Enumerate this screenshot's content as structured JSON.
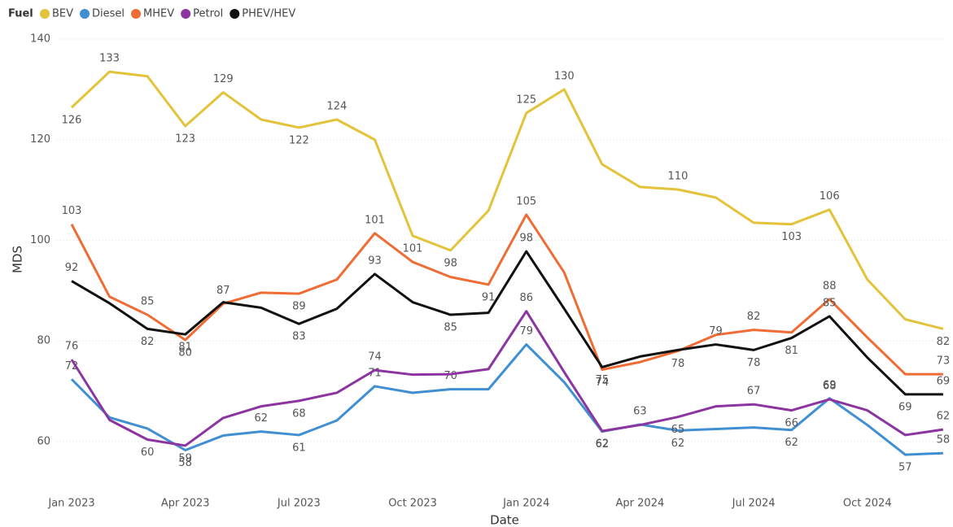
{
  "chart_data": {
    "type": "line",
    "legend_title": "Fuel",
    "x_label": "Date",
    "y_label": "MDS",
    "categories": [
      "Jan 2023",
      null,
      null,
      "Apr 2023",
      null,
      null,
      "Jul 2023",
      null,
      null,
      "Oct 2023",
      null,
      null,
      "Jan 2024",
      null,
      null,
      "Apr 2024",
      null,
      null,
      "Jul 2024",
      null,
      null,
      "Oct 2024",
      null,
      null
    ],
    "ylim": [
      52.4,
      140
    ],
    "yticks": [
      60,
      80,
      100,
      120,
      140
    ],
    "grid": true,
    "legend": "top-left",
    "series": [
      {
        "name": "BEV",
        "color": "#e3c33a",
        "values": [
          126.4,
          133.5,
          132.6,
          122.7,
          129.4,
          124.0,
          122.4,
          124.0,
          120.0,
          100.9,
          98.0,
          105.9,
          125.3,
          130.0,
          115.1,
          110.6,
          110.1,
          108.5,
          103.5,
          103.2,
          106.1,
          92.2,
          84.3,
          82.4
        ],
        "value_labels": [
          "126",
          "133",
          null,
          "123",
          "129",
          null,
          "122",
          "124",
          null,
          "101",
          "98",
          null,
          "125",
          "130",
          null,
          null,
          "110",
          null,
          null,
          "103",
          "106",
          null,
          null,
          "82"
        ]
      },
      {
        "name": "Diesel",
        "color": "#3f8fd2",
        "values": [
          72.4,
          64.8,
          62.6,
          58.3,
          61.2,
          62.0,
          61.3,
          64.2,
          71.0,
          69.7,
          70.4,
          70.4,
          79.3,
          71.8,
          62.0,
          63.4,
          62.2,
          62.5,
          62.8,
          62.3,
          68.6,
          63.3,
          57.4,
          57.7
        ],
        "value_labels": [
          "72",
          null,
          null,
          "58",
          null,
          "62",
          "61",
          null,
          "71",
          null,
          "70",
          null,
          "79",
          null,
          "62",
          "63",
          "62",
          null,
          null,
          "62",
          "69",
          null,
          "57",
          "58"
        ]
      },
      {
        "name": "MHEV",
        "color": "#ef6c35",
        "values": [
          103.2,
          88.8,
          85.2,
          80.2,
          87.4,
          89.6,
          89.4,
          92.2,
          101.4,
          95.7,
          92.7,
          91.2,
          105.1,
          93.6,
          74.3,
          75.8,
          78.0,
          81.2,
          82.2,
          81.7,
          88.3,
          80.7,
          73.4,
          73.4
        ],
        "value_labels": [
          "103",
          null,
          "85",
          "80",
          "87",
          null,
          "89",
          null,
          "101",
          null,
          null,
          "91",
          "105",
          null,
          "74",
          null,
          "78",
          null,
          "82",
          null,
          "88",
          null,
          null,
          "73"
        ]
      },
      {
        "name": "Petrol",
        "color": "#8c35a0",
        "values": [
          76.3,
          64.3,
          60.4,
          59.2,
          64.7,
          67.0,
          68.1,
          69.7,
          74.2,
          73.3,
          73.4,
          74.4,
          85.9,
          73.8,
          62.1,
          63.3,
          64.9,
          67.0,
          67.4,
          66.2,
          68.4,
          66.2,
          61.3,
          62.4
        ],
        "value_labels": [
          "76",
          null,
          "60",
          "59",
          null,
          null,
          "68",
          null,
          "74",
          null,
          null,
          null,
          "86",
          null,
          "62",
          null,
          "65",
          null,
          "67",
          "66",
          "68",
          null,
          null,
          "62"
        ]
      },
      {
        "name": "PHEV/HEV",
        "color": "#111111",
        "values": [
          91.9,
          87.5,
          82.4,
          81.3,
          87.7,
          86.6,
          83.4,
          86.4,
          93.3,
          87.7,
          85.2,
          85.6,
          97.8,
          86.4,
          74.8,
          76.9,
          78.2,
          79.3,
          78.2,
          80.6,
          84.9,
          76.7,
          69.4,
          69.4
        ],
        "value_labels": [
          "92",
          null,
          "82",
          "81",
          null,
          null,
          "83",
          null,
          "93",
          null,
          "85",
          null,
          "98",
          null,
          "75",
          null,
          null,
          "79",
          "78",
          "81",
          "85",
          null,
          "69",
          "69"
        ]
      }
    ]
  }
}
